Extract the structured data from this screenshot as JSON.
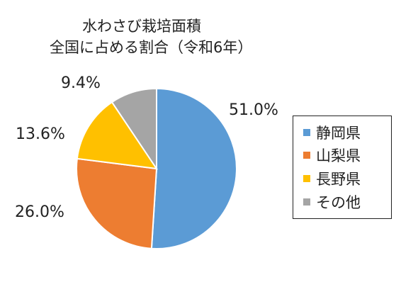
{
  "chart_data": {
    "type": "pie",
    "title": "水わさび栽培面積",
    "subtitle": "全国に占める割合（令和6年）",
    "categories": [
      "静岡県",
      "山梨県",
      "長野県",
      "その他"
    ],
    "values": [
      51.0,
      26.0,
      13.6,
      9.4
    ],
    "data_labels": [
      "51.0%",
      "26.0%",
      "13.6%",
      "9.4%"
    ],
    "colors": [
      "#5B9BD5",
      "#ED7D31",
      "#FFC000",
      "#A5A5A5"
    ],
    "legend_position": "right",
    "start_angle": "top",
    "direction": "clockwise"
  }
}
